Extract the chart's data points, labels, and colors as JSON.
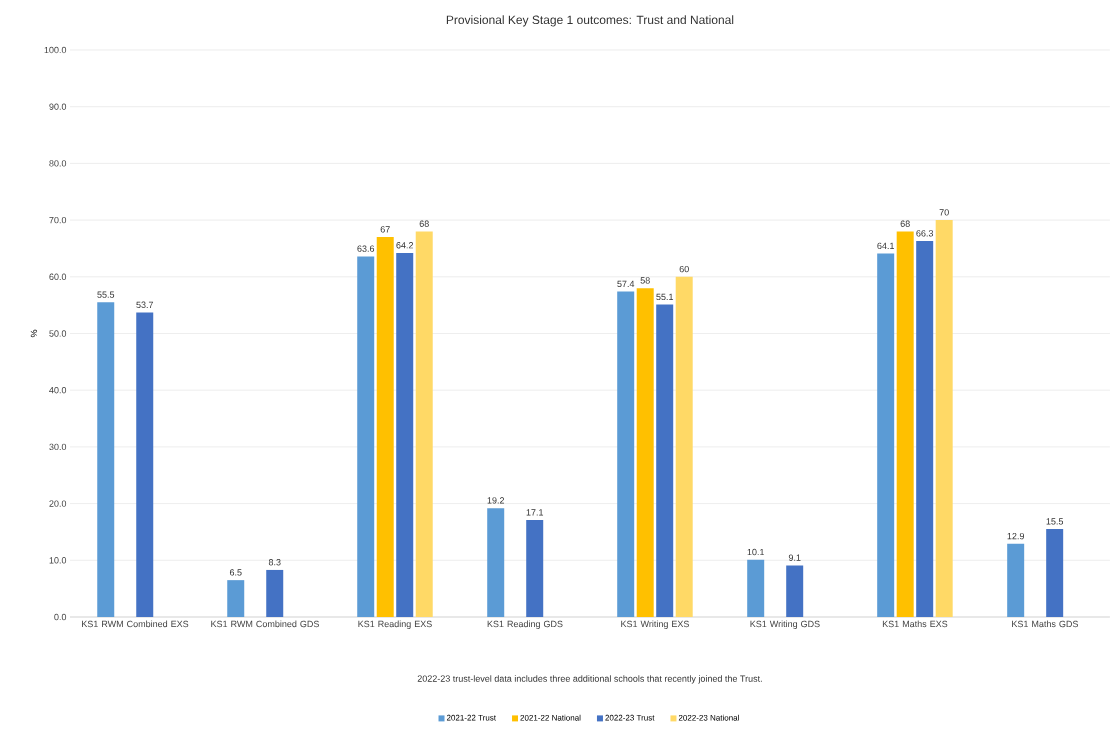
{
  "chart_data": {
    "type": "bar",
    "title": "Provisional Key Stage 1 outcomes: Trust and National",
    "ylabel": "%",
    "categories": [
      "KS1 RWM Combined EXS",
      "KS1 RWM Combined GDS",
      "KS1 Reading EXS",
      "KS1 Reading GDS",
      "KS1 Writing EXS",
      "KS1 Writing GDS",
      "KS1 Maths EXS",
      "KS1 Maths GDS"
    ],
    "series": [
      {
        "name": "2021-22 Trust",
        "color": "#5b9bd5",
        "values": [
          55.5,
          6.5,
          63.6,
          19.2,
          57.4,
          10.1,
          64.1,
          12.9
        ]
      },
      {
        "name": "2021-22 National",
        "color": "#ffc000",
        "values": [
          null,
          null,
          67,
          null,
          58,
          null,
          68,
          null
        ]
      },
      {
        "name": "2022-23 Trust",
        "color": "#4472c4",
        "values": [
          53.7,
          8.3,
          64.2,
          17.1,
          55.1,
          9.1,
          66.3,
          15.5
        ]
      },
      {
        "name": "2022-23 National",
        "color": "#ffd966",
        "values": [
          null,
          null,
          68,
          null,
          60,
          null,
          70,
          null
        ]
      }
    ],
    "ylim": [
      0,
      100
    ],
    "yticks": [
      {
        "value": 0,
        "label": "0.0"
      },
      {
        "value": 10,
        "label": "10.0"
      },
      {
        "value": 20,
        "label": "20.0"
      },
      {
        "value": 30,
        "label": "30.0"
      },
      {
        "value": 40,
        "label": "40.0"
      },
      {
        "value": 50,
        "label": "50.0"
      },
      {
        "value": 60,
        "label": "60.0"
      },
      {
        "value": 70,
        "label": "70.0"
      },
      {
        "value": 80,
        "label": "80.0"
      },
      {
        "value": 90,
        "label": "90.0"
      },
      {
        "value": 100,
        "label": "100.0"
      }
    ],
    "grid": "y",
    "legend": "bottom",
    "data_labels": true,
    "annotations": [
      "2022-23 trust-level data includes three additional schools that recently joined the Trust."
    ]
  }
}
